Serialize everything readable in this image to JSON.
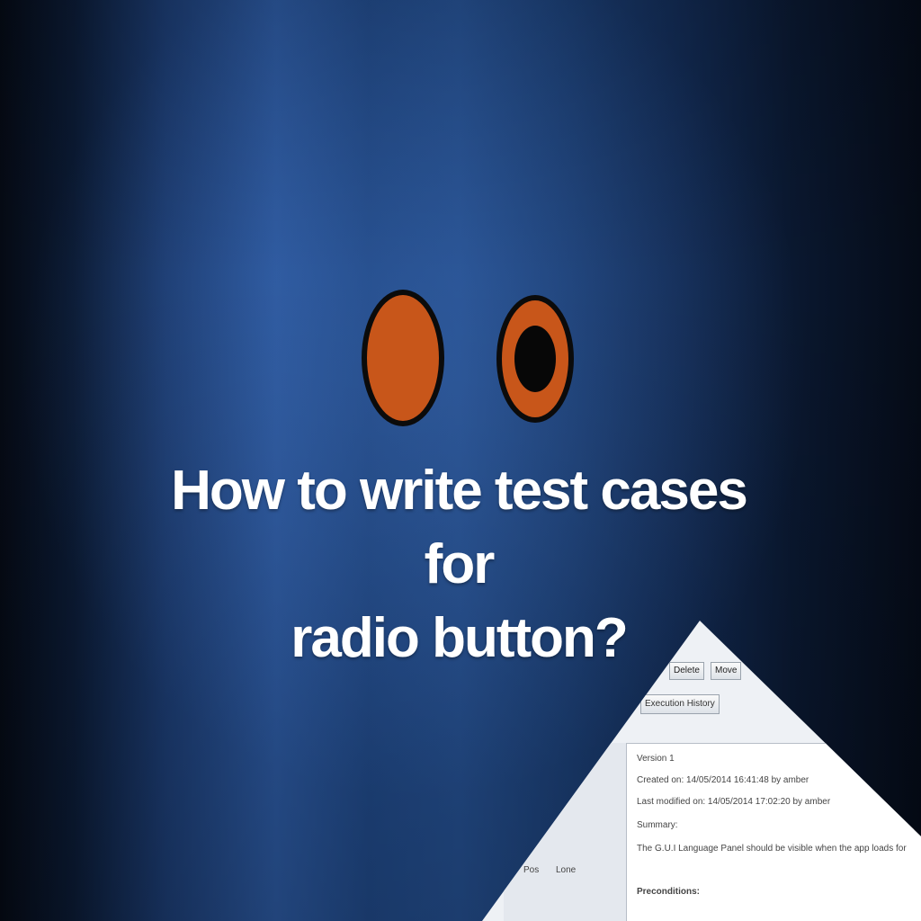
{
  "title": {
    "line1": "How to write test cases for",
    "line2": "radio button?"
  },
  "radio_buttons": [
    {
      "state": "unselected",
      "fill": "#c8561a"
    },
    {
      "state": "selected",
      "fill": "#c8561a",
      "dot": "#070707"
    }
  ],
  "screenshot_excerpt": {
    "toolbar": {
      "edit_label": "Delete",
      "move_label": "Move"
    },
    "history_label": "Execution History",
    "details": {
      "version": "Version 1",
      "created": "Created on: 14/05/2014 16:41:48  by amber",
      "modified": "Last modified on:  14/05/2014 17:02:20  by amber",
      "summary_label": "Summary:",
      "summary_text": "The G.U.I Language Panel should be visible when the app loads for",
      "preconditions_label": "Preconditions:"
    },
    "left_labels": [
      "Pos",
      "Lone"
    ]
  },
  "colors": {
    "background_dark": "#050a14",
    "background_blue": "#2a5599",
    "radio_orange": "#c8561a",
    "title_text": "#ffffff"
  }
}
